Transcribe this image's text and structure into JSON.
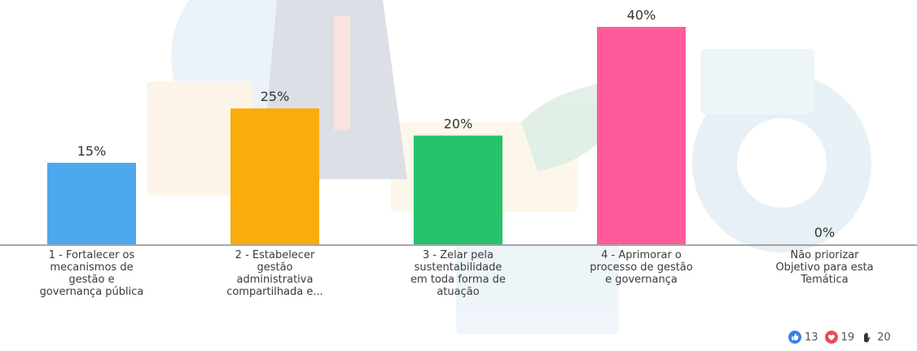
{
  "chart_data": {
    "type": "bar",
    "categories": [
      "1 - Fortalecer os mecanismos de gestão e governança pública",
      "2 - Estabelecer gestão administrativa compartilhada e...",
      "3 - Zelar pela sustentabilidade em toda forma de atuação",
      "4 - Aprimorar o processo de gestão e governança",
      "Não priorizar Objetivo para esta Temática"
    ],
    "category_lines": [
      [
        "1 - Fortalecer os",
        "mecanismos de",
        "gestão e",
        "governança pública"
      ],
      [
        "2 - Estabelecer",
        "gestão",
        "administrativa",
        "compartilhada e..."
      ],
      [
        "3 - Zelar pela",
        "sustentabilidade",
        "em toda forma de",
        "atuação"
      ],
      [
        "4 - Aprimorar o",
        "processo de gestão",
        "e governança"
      ],
      [
        "Não priorizar",
        "Objetivo para esta",
        "Temática"
      ]
    ],
    "values": [
      15,
      25,
      20,
      40,
      0
    ],
    "value_labels": [
      "15%",
      "25%",
      "20%",
      "40%",
      "0%"
    ],
    "colors": [
      "#4ea8ee",
      "#f9ac0b",
      "#26c26c",
      "#ff5b9b",
      "#cccccc"
    ],
    "ylim": [
      0,
      40
    ],
    "grid": false,
    "xlabel": "",
    "ylabel": ""
  },
  "reactions": [
    {
      "icon": "thumbs-up-icon",
      "count": "13",
      "color": "#3d7ee8"
    },
    {
      "icon": "heart-icon",
      "count": "19",
      "color": "#e84a5f"
    },
    {
      "icon": "raised-hand-icon",
      "count": "20",
      "color": "#333333"
    }
  ]
}
